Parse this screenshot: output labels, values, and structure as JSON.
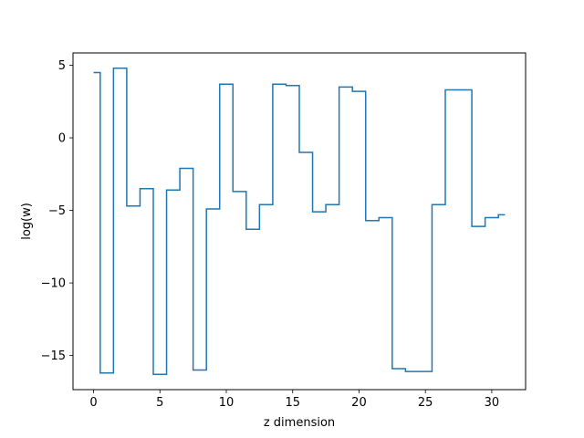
{
  "chart_data": {
    "type": "line",
    "drawstyle": "steps-mid",
    "title": "",
    "xlabel": "z dimension",
    "ylabel": "log(w)",
    "xlim": [
      -1.55,
      32.55
    ],
    "ylim": [
      -17.35,
      5.85
    ],
    "xticks": [
      0,
      5,
      10,
      15,
      20,
      25,
      30
    ],
    "yticks": [
      5,
      0,
      -5,
      -10,
      -15
    ],
    "ytick_labels": [
      "5",
      "0",
      "−5",
      "−10",
      "−15"
    ],
    "grid": false,
    "legend": "none",
    "series": [
      {
        "color": "#1f77b4",
        "x": [
          0,
          1,
          2,
          3,
          4,
          5,
          6,
          7,
          8,
          9,
          10,
          11,
          12,
          13,
          14,
          15,
          16,
          17,
          18,
          19,
          20,
          21,
          22,
          23,
          24,
          25,
          26,
          27,
          28,
          29,
          30,
          31
        ],
        "y": [
          4.5,
          -16.2,
          4.8,
          -4.7,
          -3.5,
          -16.3,
          -3.6,
          -2.1,
          -16.0,
          -4.9,
          3.7,
          -3.7,
          -6.3,
          -4.6,
          3.7,
          3.6,
          -1.0,
          -5.1,
          -4.6,
          3.5,
          3.2,
          -5.7,
          -5.5,
          -15.9,
          -16.1,
          -16.1,
          -4.6,
          3.3,
          3.3,
          -6.1,
          -5.5,
          -5.3
        ]
      }
    ]
  }
}
